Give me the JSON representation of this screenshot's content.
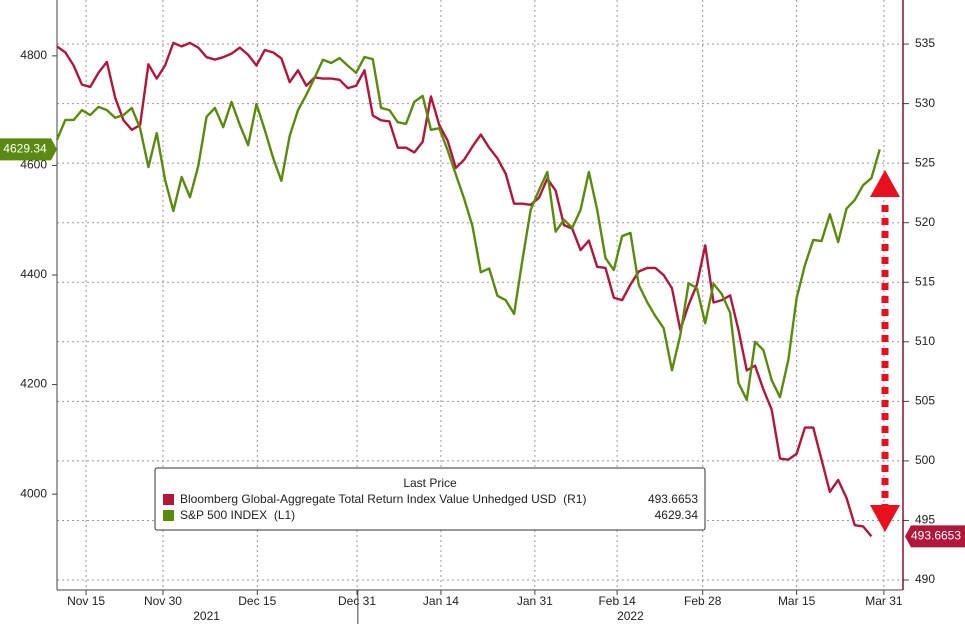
{
  "chart_data": {
    "type": "line",
    "legend_title": "Last Price",
    "x": [
      0,
      1,
      2,
      3,
      4,
      5,
      6,
      7,
      8,
      9,
      10,
      11,
      12,
      13,
      14,
      15,
      16,
      17,
      18,
      19,
      20,
      21,
      22,
      23,
      24,
      25,
      26,
      27,
      28,
      29,
      30,
      31,
      32,
      33,
      34,
      35,
      36,
      37,
      38,
      39,
      40,
      41,
      42,
      43,
      44,
      45,
      46,
      47,
      48,
      49,
      50,
      51,
      52,
      53,
      54,
      55,
      56,
      57,
      58,
      59,
      60,
      61,
      62,
      63,
      64,
      65,
      66,
      67,
      68,
      69,
      70,
      71,
      72,
      73,
      74,
      75,
      76,
      77,
      78,
      79,
      80,
      81,
      82,
      83,
      84,
      85,
      86,
      87,
      88,
      89,
      90,
      91,
      92,
      93,
      94,
      95,
      96,
      97,
      98,
      99
    ],
    "xlim": [
      0,
      101.8
    ],
    "xticks": [
      {
        "value": 3.5,
        "label": "Nov 15"
      },
      {
        "value": 12.75,
        "label": "Nov 30"
      },
      {
        "value": 24.1,
        "label": "Dec 15"
      },
      {
        "value": 36.1,
        "label": "Dec 31"
      },
      {
        "value": 46.2,
        "label": "Jan 14"
      },
      {
        "value": 57.5,
        "label": "Jan 31"
      },
      {
        "value": 67.4,
        "label": "Feb 14"
      },
      {
        "value": 77.7,
        "label": "Feb 28"
      },
      {
        "value": 89,
        "label": "Mar 15"
      },
      {
        "value": 99.5,
        "label": "Mar 31"
      }
    ],
    "year_labels": [
      {
        "value": 18,
        "label": "2021"
      },
      {
        "value": 69,
        "label": "2022"
      }
    ],
    "year_divider": 36.2,
    "ylim": [
      3825,
      4902
    ],
    "yticks": [
      4000,
      4200,
      4400,
      4600,
      4800
    ],
    "y2lim": [
      489.16,
      538.7
    ],
    "y2ticks": [
      490,
      495,
      500,
      505,
      510,
      515,
      520,
      525,
      530,
      535
    ],
    "grid": true,
    "series": [
      {
        "name": "Bloomberg Global-Aggregate Total Return Index Value Unhedged USD  (R1)",
        "color": "#b0173a",
        "axis": "y2",
        "values": [
          534.8,
          534.3,
          533.2,
          531.6,
          531.4,
          532.6,
          533.5,
          530.5,
          528.6,
          527.8,
          528.2,
          533.3,
          532.1,
          533.2,
          535.1,
          534.8,
          535.1,
          534.7,
          533.9,
          533.7,
          533.9,
          534.2,
          534.7,
          534.1,
          533.2,
          534.5,
          534.3,
          533.8,
          531.8,
          532.8,
          531.5,
          532.2,
          532.1,
          532.1,
          532.0,
          531.3,
          531.5,
          532.8,
          529.0,
          528.6,
          528.5,
          526.3,
          526.3,
          525.9,
          526.8,
          530.6,
          528.2,
          526.9,
          524.6,
          525.3,
          526.4,
          527.4,
          526.3,
          525.4,
          524.1,
          521.6,
          521.6,
          521.5,
          522.1,
          523.7,
          522.7,
          519.8,
          519.5,
          517.7,
          518.5,
          516.3,
          516.2,
          513.7,
          513.5,
          514.8,
          515.9,
          516.2,
          516.2,
          515.6,
          514.5,
          511.0,
          513.1,
          514.8,
          518.1,
          513.3,
          513.5,
          513.9,
          511.0,
          507.6,
          508.0,
          506.0,
          504.3,
          500.2,
          500.1,
          500.6,
          502.8,
          502.8,
          500.1,
          497.4,
          498.4,
          496.9,
          494.6,
          494.5,
          493.6653,
          null
        ]
      },
      {
        "name": "S&P 500 INDEX  (L1)",
        "color": "#5a8a0f",
        "values": [
          4647,
          4683,
          4683,
          4701,
          4692,
          4707,
          4701,
          4687,
          4692,
          4705,
          4668,
          4597,
          4659,
          4574,
          4517,
          4579,
          4542,
          4599,
          4689,
          4705,
          4670,
          4716,
          4674,
          4637,
          4712,
          4665,
          4614,
          4572,
          4654,
          4701,
          4729,
          4760,
          4793,
          4787,
          4796,
          4782,
          4769,
          4798,
          4794,
          4705,
          4701,
          4679,
          4676,
          4716,
          4727,
          4665,
          4668,
          4628,
          4583,
          4539,
          4489,
          4405,
          4412,
          4362,
          4354,
          4329,
          4427,
          4519,
          4555,
          4588,
          4479,
          4501,
          4486,
          4519,
          4588,
          4519,
          4431,
          4409,
          4471,
          4477,
          4382,
          4351,
          4325,
          4303,
          4226,
          4290,
          4385,
          4376,
          4312,
          4384,
          4365,
          4331,
          4203,
          4172,
          4278,
          4263,
          4208,
          4177,
          4245,
          4358,
          4418,
          4464,
          4462,
          4511,
          4460,
          4521,
          4537,
          4564,
          4577,
          4629.34
        ]
      }
    ]
  }
}
